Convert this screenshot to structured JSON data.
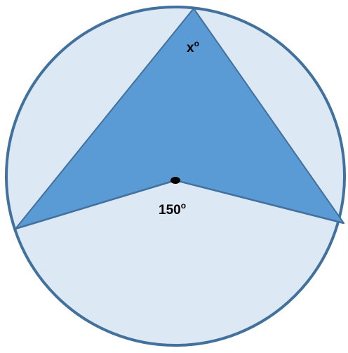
{
  "labels": {
    "apex": {
      "text": "x",
      "degree": "o"
    },
    "center": {
      "text": "150",
      "degree": "o"
    }
  }
}
